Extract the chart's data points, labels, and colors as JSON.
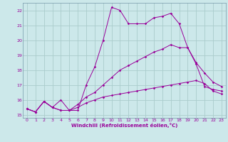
{
  "background_color": "#cce8ea",
  "grid_color": "#aacccc",
  "line_color": "#990099",
  "spine_color": "#7799aa",
  "xlim": [
    -0.5,
    23.5
  ],
  "ylim": [
    14.8,
    22.5
  ],
  "xlabel": "Windchill (Refroidissement éolien,°C)",
  "xticks": [
    0,
    1,
    2,
    3,
    4,
    5,
    6,
    7,
    8,
    9,
    10,
    11,
    12,
    13,
    14,
    15,
    16,
    17,
    18,
    19,
    20,
    21,
    22,
    23
  ],
  "yticks": [
    15,
    16,
    17,
    18,
    19,
    20,
    21,
    22
  ],
  "curve1_x": [
    0,
    1,
    2,
    3,
    4,
    5,
    6,
    7,
    8,
    9,
    10,
    11,
    12,
    13,
    14,
    15,
    16,
    17,
    18,
    19,
    20,
    21,
    22,
    23
  ],
  "curve1_y": [
    15.4,
    15.2,
    15.9,
    15.5,
    16.0,
    15.3,
    15.3,
    17.0,
    18.2,
    20.0,
    22.2,
    22.0,
    21.1,
    21.1,
    21.1,
    21.5,
    21.6,
    21.8,
    21.1,
    19.5,
    18.4,
    16.9,
    16.7,
    16.6
  ],
  "curve2_x": [
    0,
    1,
    2,
    3,
    4,
    5,
    6,
    7,
    8,
    9,
    10,
    11,
    12,
    13,
    14,
    15,
    16,
    17,
    18,
    19,
    20,
    21,
    22,
    23
  ],
  "curve2_y": [
    15.4,
    15.2,
    15.9,
    15.5,
    15.3,
    15.3,
    15.7,
    16.2,
    16.5,
    17.0,
    17.5,
    18.0,
    18.3,
    18.6,
    18.9,
    19.2,
    19.4,
    19.7,
    19.5,
    19.5,
    18.5,
    17.8,
    17.2,
    16.9
  ],
  "curve3_x": [
    0,
    1,
    2,
    3,
    4,
    5,
    6,
    7,
    8,
    9,
    10,
    11,
    12,
    13,
    14,
    15,
    16,
    17,
    18,
    19,
    20,
    21,
    22,
    23
  ],
  "curve3_y": [
    15.4,
    15.2,
    15.9,
    15.5,
    15.3,
    15.3,
    15.5,
    15.8,
    16.0,
    16.2,
    16.3,
    16.4,
    16.5,
    16.6,
    16.7,
    16.8,
    16.9,
    17.0,
    17.1,
    17.2,
    17.3,
    17.1,
    16.6,
    16.4
  ]
}
